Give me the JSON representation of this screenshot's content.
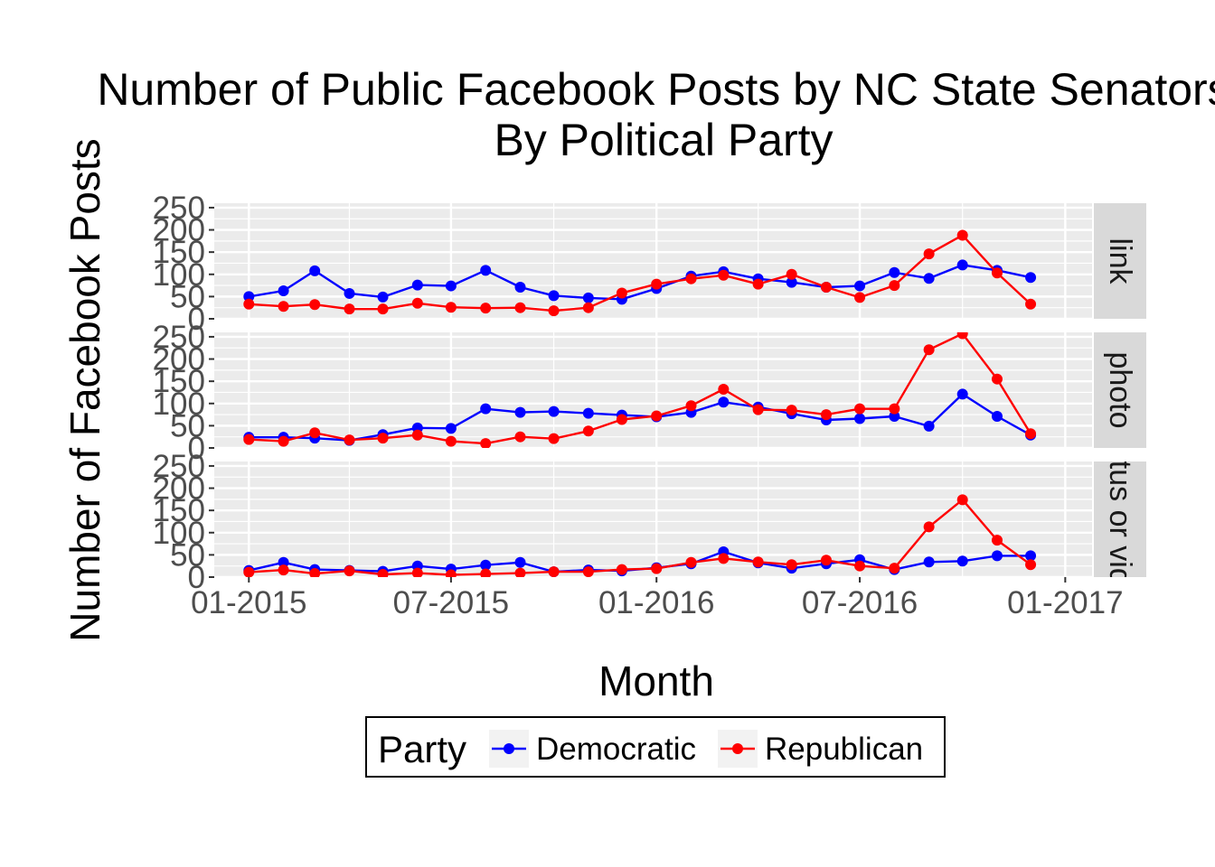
{
  "chart_data": {
    "type": "line",
    "title_line1": "Number of Public Facebook Posts by NC State Senators",
    "title_line2": "By Political Party",
    "xlabel": "Month",
    "ylabel": "Number of Facebook Posts",
    "x_ticks": [
      "01-2015",
      "07-2015",
      "01-2016",
      "07-2016",
      "01-2017"
    ],
    "x_tick_dates": [
      "2015-01-01",
      "2015-07-01",
      "2016-01-01",
      "2016-07-01",
      "2017-01-01"
    ],
    "xlim": [
      "2014-12-01",
      "2017-01-25"
    ],
    "y_ticks": [
      "0",
      "50",
      "100",
      "150",
      "200",
      "250"
    ],
    "ylim": [
      0,
      260
    ],
    "grid": true,
    "legend": {
      "title": "Party",
      "position": "bottom",
      "entries": [
        {
          "name": "Democratic",
          "color": "#0000ff"
        },
        {
          "name": "Republican",
          "color": "#ff0000"
        }
      ]
    },
    "x": [
      "2015-01-01",
      "2015-02-01",
      "2015-03-01",
      "2015-04-01",
      "2015-05-01",
      "2015-06-01",
      "2015-07-01",
      "2015-08-01",
      "2015-09-01",
      "2015-10-01",
      "2015-11-01",
      "2015-12-01",
      "2016-01-01",
      "2016-02-01",
      "2016-03-01",
      "2016-04-01",
      "2016-05-01",
      "2016-06-01",
      "2016-07-01",
      "2016-08-01",
      "2016-09-01",
      "2016-10-01",
      "2016-11-01",
      "2016-12-01"
    ],
    "facets": [
      {
        "label": "link",
        "series": [
          {
            "name": "Democratic",
            "values": [
              50,
              63,
              108,
              57,
              49,
              76,
              74,
              109,
              71,
              52,
              47,
              44,
              68,
              96,
              106,
              90,
              82,
              71,
              74,
              104,
              91,
              121,
              109,
              93
            ]
          },
          {
            "name": "Republican",
            "values": [
              33,
              28,
              32,
              22,
              22,
              35,
              26,
              24,
              25,
              18,
              25,
              58,
              78,
              90,
              98,
              78,
              100,
              71,
              48,
              75,
              146,
              188,
              103,
              33
            ]
          }
        ]
      },
      {
        "label": "photo",
        "series": [
          {
            "name": "Democratic",
            "values": [
              24,
              24,
              22,
              17,
              30,
              45,
              44,
              88,
              80,
              82,
              78,
              74,
              70,
              80,
              103,
              92,
              77,
              63,
              66,
              71,
              49,
              121,
              71,
              29
            ]
          },
          {
            "name": "Republican",
            "values": [
              19,
              15,
              34,
              18,
              22,
              29,
              15,
              10,
              25,
              21,
              38,
              64,
              72,
              95,
              132,
              86,
              85,
              75,
              88,
              88,
              221,
              257,
              155,
              32
            ]
          }
        ]
      },
      {
        "label": "status or video",
        "series": [
          {
            "name": "Democratic",
            "values": [
              15,
              33,
              17,
              15,
              13,
              25,
              18,
              27,
              33,
              12,
              16,
              14,
              21,
              30,
              57,
              32,
              20,
              30,
              39,
              17,
              34,
              36,
              48,
              48
            ]
          },
          {
            "name": "Republican",
            "values": [
              11,
              16,
              8,
              14,
              6,
              9,
              5,
              7,
              9,
              12,
              12,
              17,
              19,
              33,
              42,
              34,
              28,
              38,
              25,
              20,
              113,
              174,
              83,
              28
            ]
          }
        ]
      }
    ]
  }
}
